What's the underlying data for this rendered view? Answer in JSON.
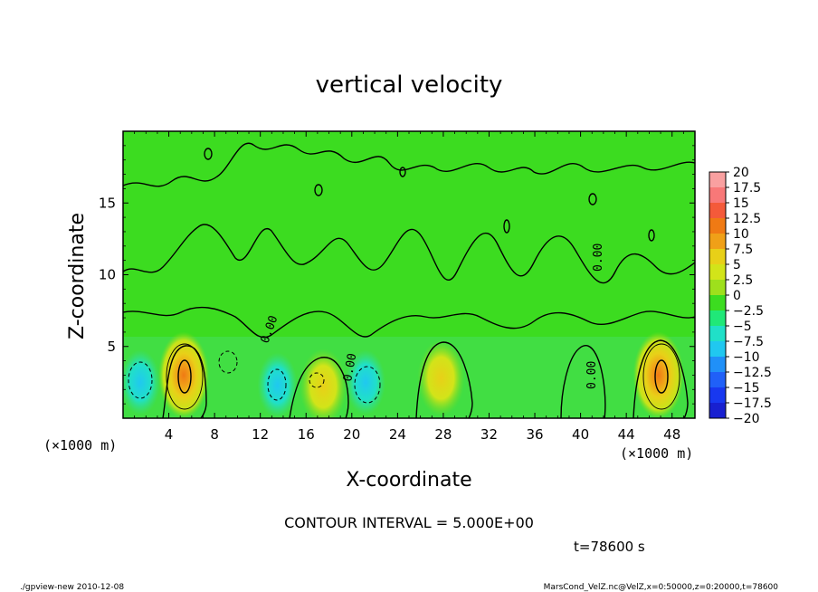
{
  "chart_data": {
    "type": "heatmap",
    "title": "vertical velocity",
    "xlabel": "X-coordinate",
    "ylabel": "Z-coordinate",
    "x_unit": "(×1000 m)",
    "x_unit_right": "(×1000 m)",
    "y_unit": "(×1000 m)",
    "xlim": [
      0,
      50
    ],
    "ylim": [
      0,
      20
    ],
    "x_ticks": [
      4,
      8,
      12,
      16,
      20,
      24,
      28,
      32,
      36,
      40,
      44,
      48
    ],
    "y_ticks": [
      5,
      10,
      15
    ],
    "contour_interval_text": "CONTOUR INTERVAL = 5.000E+00",
    "contour_labels": [
      "0.00",
      "0.00",
      "0.00",
      "0.00"
    ],
    "colorbar": {
      "labels": [
        "20",
        "17.5",
        "15",
        "12.5",
        "10",
        "7.5",
        "5",
        "2.5",
        "0",
        "-2.5",
        "-5",
        "-7.5",
        "-10",
        "-12.5",
        "-15",
        "-17.5",
        "-20"
      ],
      "colors": [
        "#f9a0a0",
        "#f87878",
        "#f45a3a",
        "#f07a14",
        "#f0a018",
        "#e8d018",
        "#d2e419",
        "#9ee01c",
        "#3cdc20",
        "#20e878",
        "#20e0c8",
        "#20c8f0",
        "#2090f8",
        "#2060f8",
        "#1838f0",
        "#1820d0",
        "#6818c8"
      ]
    },
    "updrafts": [
      {
        "x": 5.3,
        "z": 3.0,
        "peak": 12.5
      },
      {
        "x": 17.5,
        "z": 2.2,
        "peak": 7.5
      },
      {
        "x": 27.8,
        "z": 2.8,
        "peak": 7.5
      },
      {
        "x": 46.8,
        "z": 3.0,
        "peak": 12.5
      }
    ],
    "downdrafts": [
      {
        "x": 1.5,
        "z": 2.5,
        "peak": -7.5
      },
      {
        "x": 13.5,
        "z": 2.3,
        "peak": -5
      },
      {
        "x": 21.2,
        "z": 2.5,
        "peak": -7.5
      }
    ]
  },
  "annotations": {
    "time": "t=78600 s",
    "footer_left": "./gpview-new   2010-12-08",
    "footer_right": "MarsCond_VelZ.nc@VelZ,x=0:50000,z=0:20000,t=78600"
  }
}
